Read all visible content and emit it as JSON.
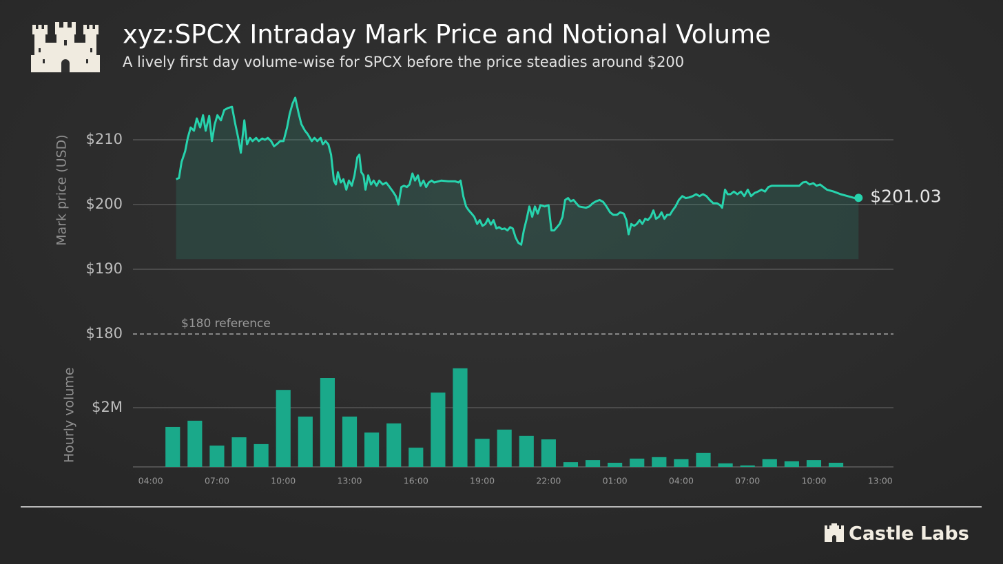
{
  "chart_data": [
    {
      "type": "line",
      "title": "xyz:SPCX Intraday Mark Price and Notional Volume",
      "subtitle": "A lively first day volume-wise for SPCX before the price steadies around $200",
      "y_label": "Mark price (USD)",
      "color": "#27d3ad",
      "grid": true,
      "xlim": [
        3.2,
        37.6
      ],
      "ylim": [
        180,
        217
      ],
      "yticks": [
        {
          "value": 180,
          "label": "$180"
        },
        {
          "value": 190,
          "label": "$190"
        },
        {
          "value": 200,
          "label": "$200"
        },
        {
          "value": 210,
          "label": "$210"
        }
      ],
      "reference_line": {
        "value": 180,
        "label": "$180 reference",
        "dashed": true
      },
      "end_label": "$201.03",
      "x": [
        5.15,
        5.28,
        5.4,
        5.56,
        5.68,
        5.81,
        5.96,
        6.09,
        6.24,
        6.37,
        6.49,
        6.65,
        6.77,
        6.9,
        7.02,
        7.18,
        7.33,
        7.49,
        7.68,
        7.83,
        7.96,
        8.08,
        8.24,
        8.36,
        8.49,
        8.61,
        8.77,
        8.89,
        9.05,
        9.17,
        9.3,
        9.45,
        9.58,
        9.7,
        9.86,
        10.01,
        10.17,
        10.29,
        10.42,
        10.54,
        10.7,
        10.82,
        10.98,
        11.1,
        11.29,
        11.41,
        11.54,
        11.69,
        11.79,
        11.91,
        12.04,
        12.16,
        12.29,
        12.38,
        12.47,
        12.6,
        12.72,
        12.85,
        12.97,
        13.1,
        13.22,
        13.35,
        13.44,
        13.53,
        13.63,
        13.72,
        13.84,
        13.97,
        14.09,
        14.22,
        14.34,
        14.5,
        14.65,
        14.81,
        14.96,
        15.09,
        15.21,
        15.34,
        15.46,
        15.59,
        15.71,
        15.84,
        15.96,
        16.09,
        16.21,
        16.34,
        16.46,
        16.58,
        16.71,
        16.83,
        17.15,
        17.46,
        17.77,
        17.92,
        18.02,
        18.14,
        18.27,
        18.39,
        18.52,
        18.64,
        18.77,
        18.89,
        19.01,
        19.14,
        19.26,
        19.39,
        19.51,
        19.64,
        19.76,
        19.89,
        20.01,
        20.14,
        20.26,
        20.38,
        20.51,
        20.63,
        20.76,
        20.88,
        21.01,
        21.13,
        21.26,
        21.38,
        21.51,
        21.63,
        21.82,
        22.0,
        22.13,
        22.25,
        22.38,
        22.5,
        22.63,
        22.75,
        22.88,
        23.0,
        23.13,
        23.25,
        23.38,
        23.69,
        23.84,
        24.0,
        24.15,
        24.31,
        24.47,
        24.62,
        24.78,
        24.93,
        25.09,
        25.24,
        25.4,
        25.52,
        25.62,
        25.74,
        25.87,
        25.99,
        26.12,
        26.24,
        26.37,
        26.49,
        26.62,
        26.74,
        26.86,
        26.99,
        27.11,
        27.24,
        27.36,
        27.49,
        27.61,
        27.74,
        27.89,
        28.05,
        28.2,
        28.36,
        28.52,
        28.67,
        28.83,
        28.98,
        29.14,
        29.29,
        29.45,
        29.61,
        29.76,
        29.85,
        29.98,
        30.1,
        30.23,
        30.38,
        30.54,
        30.7,
        30.85,
        31.01,
        31.16,
        31.32,
        31.47,
        31.63,
        31.79,
        31.94,
        32.1,
        32.72,
        33.34,
        33.5,
        33.65,
        33.81,
        33.97,
        34.12,
        34.28,
        34.43,
        34.59,
        34.9,
        35.21,
        35.53,
        35.84,
        36.02
      ],
      "values": [
        203.9,
        204.1,
        206.6,
        208.2,
        210.3,
        211.9,
        211.4,
        213.3,
        211.9,
        213.8,
        211.4,
        213.7,
        209.8,
        212.4,
        213.8,
        213.0,
        214.6,
        214.9,
        215.1,
        212.4,
        210.3,
        208.0,
        213.0,
        209.3,
        210.3,
        209.8,
        210.3,
        209.8,
        210.2,
        210.0,
        210.3,
        209.8,
        209.0,
        209.3,
        209.8,
        209.8,
        211.9,
        214.0,
        215.6,
        216.5,
        214.0,
        212.4,
        211.4,
        210.9,
        209.8,
        210.3,
        209.8,
        210.3,
        209.3,
        209.8,
        209.3,
        207.7,
        203.7,
        203.1,
        205.0,
        203.4,
        203.9,
        202.3,
        203.7,
        202.9,
        204.5,
        207.3,
        207.7,
        205.0,
        204.5,
        202.3,
        204.5,
        203.1,
        203.7,
        202.9,
        203.7,
        203.1,
        203.4,
        202.7,
        202.0,
        201.3,
        200.0,
        202.7,
        202.9,
        202.7,
        203.1,
        204.8,
        203.7,
        204.5,
        202.9,
        203.7,
        202.7,
        203.4,
        203.7,
        203.4,
        203.7,
        203.6,
        203.6,
        203.4,
        203.7,
        201.3,
        199.7,
        199.1,
        198.6,
        198.1,
        197.0,
        197.6,
        196.7,
        197.0,
        197.8,
        196.9,
        197.6,
        196.3,
        196.5,
        196.2,
        196.3,
        196.0,
        196.5,
        196.3,
        194.9,
        194.1,
        193.8,
        196.0,
        197.8,
        199.7,
        198.1,
        199.7,
        198.6,
        199.9,
        199.7,
        199.9,
        196.0,
        196.0,
        196.5,
        197.0,
        198.1,
        200.7,
        201.0,
        200.5,
        200.7,
        200.2,
        199.7,
        199.5,
        199.7,
        200.2,
        200.5,
        200.7,
        200.4,
        199.7,
        198.8,
        198.4,
        198.4,
        198.8,
        198.6,
        197.6,
        195.4,
        197.0,
        196.7,
        197.0,
        197.6,
        197.0,
        197.8,
        197.6,
        198.1,
        199.1,
        197.8,
        198.1,
        198.8,
        197.8,
        198.4,
        198.4,
        199.1,
        199.7,
        200.7,
        201.3,
        201.0,
        201.1,
        201.3,
        201.6,
        201.3,
        201.6,
        201.3,
        200.7,
        200.2,
        200.2,
        199.9,
        199.5,
        202.3,
        201.6,
        201.6,
        202.0,
        201.6,
        202.0,
        201.3,
        202.3,
        201.3,
        201.8,
        202.0,
        202.3,
        202.0,
        202.7,
        202.9,
        202.9,
        202.9,
        203.4,
        203.5,
        203.1,
        203.3,
        202.9,
        203.1,
        202.7,
        202.3,
        202.0,
        201.6,
        201.3,
        201.0,
        201.03
      ]
    },
    {
      "type": "bar",
      "y_label": "Hourly volume",
      "color": "#1aa98a",
      "grid": true,
      "xlim": [
        3.2,
        37.6
      ],
      "ylim": [
        0,
        3500000
      ],
      "yticks": [
        {
          "value": 2000000,
          "label": "$2M"
        }
      ],
      "xticks": [
        {
          "value": 4,
          "label": "04:00"
        },
        {
          "value": 7,
          "label": "07:00"
        },
        {
          "value": 10,
          "label": "10:00"
        },
        {
          "value": 13,
          "label": "13:00"
        },
        {
          "value": 16,
          "label": "16:00"
        },
        {
          "value": 19,
          "label": "19:00"
        },
        {
          "value": 22,
          "label": "22:00"
        },
        {
          "value": 25,
          "label": "01:00"
        },
        {
          "value": 28,
          "label": "04:00"
        },
        {
          "value": 31,
          "label": "07:00"
        },
        {
          "value": 34,
          "label": "10:00"
        },
        {
          "value": 37,
          "label": "13:00"
        }
      ],
      "x": [
        5,
        6,
        7,
        8,
        9,
        10,
        11,
        12,
        13,
        14,
        15,
        16,
        17,
        18,
        19,
        20,
        21,
        22,
        23,
        24,
        25,
        26,
        27,
        28,
        29,
        30,
        31,
        32,
        33,
        34,
        35
      ],
      "values": [
        1350000,
        1560000,
        720000,
        1000000,
        770000,
        2600000,
        1700000,
        3000000,
        1700000,
        1160000,
        1470000,
        650000,
        2510000,
        3330000,
        950000,
        1260000,
        1050000,
        930000,
        160000,
        230000,
        140000,
        280000,
        330000,
        260000,
        470000,
        120000,
        50000,
        260000,
        190000,
        230000,
        140000
      ]
    }
  ],
  "footer": {
    "brand": "Castle Labs"
  }
}
